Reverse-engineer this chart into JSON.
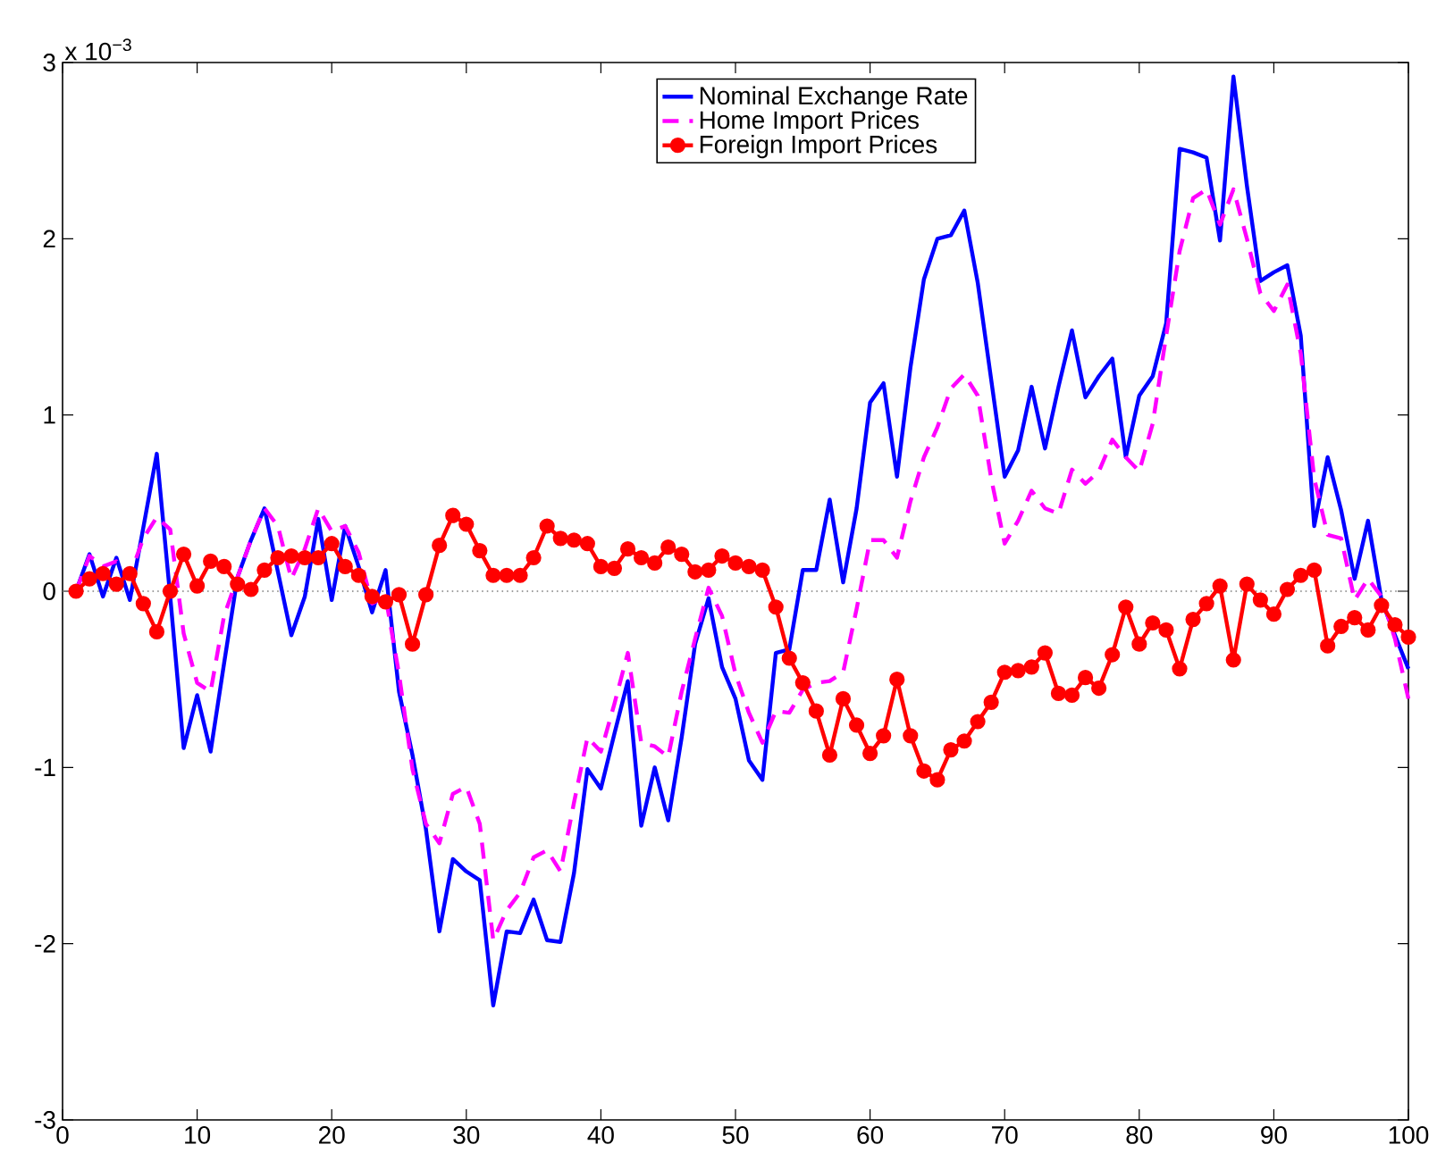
{
  "chart_data": {
    "type": "line",
    "x": [
      1,
      2,
      3,
      4,
      5,
      6,
      7,
      8,
      9,
      10,
      11,
      12,
      13,
      14,
      15,
      16,
      17,
      18,
      19,
      20,
      21,
      22,
      23,
      24,
      25,
      26,
      27,
      28,
      29,
      30,
      31,
      32,
      33,
      34,
      35,
      36,
      37,
      38,
      39,
      40,
      41,
      42,
      43,
      44,
      45,
      46,
      47,
      48,
      49,
      50,
      51,
      52,
      53,
      54,
      55,
      56,
      57,
      58,
      59,
      60,
      61,
      62,
      63,
      64,
      65,
      66,
      67,
      68,
      69,
      70,
      71,
      72,
      73,
      74,
      75,
      76,
      77,
      78,
      79,
      80,
      81,
      82,
      83,
      84,
      85,
      86,
      87,
      88,
      89,
      90,
      91,
      92,
      93,
      94,
      95,
      96,
      97,
      98,
      99,
      100
    ],
    "series": [
      {
        "name": "Nominal Exchange Rate",
        "color": "#0000ff",
        "line_style": "solid",
        "marker": "none",
        "values": [
          0.0,
          0.21,
          -0.03,
          0.19,
          -0.05,
          0.36,
          0.78,
          -0.03,
          -0.89,
          -0.59,
          -0.91,
          -0.41,
          0.08,
          0.29,
          0.47,
          0.11,
          -0.25,
          -0.03,
          0.41,
          -0.05,
          0.37,
          0.14,
          -0.12,
          0.12,
          -0.57,
          -0.93,
          -1.35,
          -1.93,
          -1.52,
          -1.59,
          -1.64,
          -2.35,
          -1.93,
          -1.94,
          -1.75,
          -1.98,
          -1.99,
          -1.6,
          -1.01,
          -1.12,
          -0.81,
          -0.51,
          -1.33,
          -1.0,
          -1.3,
          -0.83,
          -0.3,
          -0.04,
          -0.43,
          -0.61,
          -0.96,
          -1.07,
          -0.35,
          -0.33,
          0.12,
          0.12,
          0.52,
          0.05,
          0.47,
          1.07,
          1.18,
          0.65,
          1.27,
          1.77,
          2.0,
          2.02,
          2.16,
          1.75,
          1.2,
          0.65,
          0.8,
          1.16,
          0.81,
          1.16,
          1.48,
          1.1,
          1.22,
          1.32,
          0.76,
          1.11,
          1.22,
          1.52,
          2.51,
          2.49,
          2.46,
          1.99,
          2.92,
          2.3,
          1.76,
          1.81,
          1.85,
          1.45,
          0.37,
          0.76,
          0.46,
          0.07,
          0.4,
          -0.05,
          -0.25,
          -0.44
        ]
      },
      {
        "name": "Home Import Prices",
        "color": "#ff00ff",
        "line_style": "dashed",
        "marker": "none",
        "values": [
          0.0,
          0.2,
          0.14,
          0.17,
          0.09,
          0.3,
          0.42,
          0.35,
          -0.24,
          -0.52,
          -0.57,
          -0.14,
          0.08,
          0.29,
          0.47,
          0.37,
          0.07,
          0.24,
          0.47,
          0.34,
          0.37,
          0.22,
          -0.07,
          -0.03,
          -0.47,
          -1.01,
          -1.32,
          -1.43,
          -1.15,
          -1.11,
          -1.32,
          -1.98,
          -1.81,
          -1.71,
          -1.51,
          -1.47,
          -1.59,
          -1.2,
          -0.83,
          -0.91,
          -0.64,
          -0.35,
          -0.86,
          -0.88,
          -0.94,
          -0.57,
          -0.27,
          0.02,
          -0.14,
          -0.47,
          -0.69,
          -0.86,
          -0.68,
          -0.69,
          -0.56,
          -0.52,
          -0.51,
          -0.46,
          -0.1,
          0.29,
          0.29,
          0.19,
          0.51,
          0.76,
          0.93,
          1.15,
          1.23,
          1.11,
          0.64,
          0.27,
          0.4,
          0.57,
          0.47,
          0.44,
          0.69,
          0.61,
          0.68,
          0.86,
          0.76,
          0.68,
          0.95,
          1.45,
          1.93,
          2.23,
          2.28,
          2.08,
          2.28,
          2.0,
          1.69,
          1.59,
          1.74,
          1.35,
          0.64,
          0.32,
          0.3,
          -0.05,
          0.07,
          -0.03,
          -0.27,
          -0.61
        ]
      },
      {
        "name": "Foreign Import Prices",
        "color": "#ff0000",
        "line_style": "solid",
        "marker": "circle",
        "values": [
          0.0,
          0.07,
          0.1,
          0.04,
          0.1,
          -0.07,
          -0.23,
          0.0,
          0.21,
          0.03,
          0.17,
          0.14,
          0.04,
          0.01,
          0.12,
          0.19,
          0.2,
          0.19,
          0.19,
          0.27,
          0.14,
          0.09,
          -0.03,
          -0.06,
          -0.02,
          -0.3,
          -0.02,
          0.26,
          0.43,
          0.38,
          0.23,
          0.09,
          0.09,
          0.09,
          0.19,
          0.37,
          0.3,
          0.29,
          0.27,
          0.14,
          0.13,
          0.24,
          0.19,
          0.16,
          0.25,
          0.21,
          0.11,
          0.12,
          0.2,
          0.16,
          0.14,
          0.12,
          -0.09,
          -0.38,
          -0.52,
          -0.68,
          -0.93,
          -0.61,
          -0.76,
          -0.92,
          -0.82,
          -0.5,
          -0.82,
          -1.02,
          -1.07,
          -0.9,
          -0.85,
          -0.74,
          -0.63,
          -0.46,
          -0.45,
          -0.43,
          -0.35,
          -0.58,
          -0.59,
          -0.49,
          -0.55,
          -0.36,
          -0.09,
          -0.3,
          -0.18,
          -0.22,
          -0.44,
          -0.16,
          -0.07,
          0.03,
          -0.39,
          0.04,
          -0.05,
          -0.13,
          0.01,
          0.09,
          0.12,
          -0.31,
          -0.2,
          -0.15,
          -0.22,
          -0.08,
          -0.19,
          -0.26
        ]
      }
    ],
    "xlim": [
      0,
      100
    ],
    "xticks": [
      0,
      10,
      20,
      30,
      40,
      50,
      60,
      70,
      80,
      90,
      100
    ],
    "ylim": [
      -3,
      3
    ],
    "yticks": [
      -3,
      -2,
      -1,
      0,
      1,
      2,
      3
    ],
    "ref_lines": [
      {
        "axis": "y",
        "value": 0,
        "color": "#808080",
        "line_style": "dotted"
      }
    ],
    "annotations": [
      "x 10$^{−3}$"
    ],
    "grid": false,
    "legend": "top"
  }
}
